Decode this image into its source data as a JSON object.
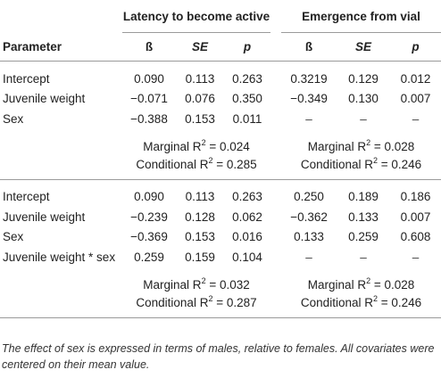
{
  "header": {
    "group1": "Latency to become active",
    "group2": "Emergence from vial",
    "parameter": "Parameter",
    "beta": "ß",
    "se": "SE",
    "p": "p"
  },
  "model1": {
    "rows": [
      {
        "label": "Intercept",
        "b1": "0.090",
        "se1": "0.113",
        "p1": "0.263",
        "b2": "0.3219",
        "se2": "0.129",
        "p2": "0.012"
      },
      {
        "label": "Juvenile weight",
        "b1": "−0.071",
        "se1": "0.076",
        "p1": "0.350",
        "b2": "−0.349",
        "se2": "0.130",
        "p2": "0.007"
      },
      {
        "label": "Sex",
        "b1": "−0.388",
        "se1": "0.153",
        "p1": "0.011",
        "b2": "–",
        "se2": "–",
        "p2": "–"
      }
    ],
    "fit": {
      "marg1": "Marginal R",
      "marg1_val": " = 0.024",
      "cond1": "Conditional R",
      "cond1_val": " = 0.285",
      "marg2": "Marginal R",
      "marg2_val": " = 0.028",
      "cond2": "Conditional R",
      "cond2_val": " = 0.246",
      "sup": "2"
    }
  },
  "model2": {
    "rows": [
      {
        "label": "Intercept",
        "b1": "0.090",
        "se1": "0.113",
        "p1": "0.263",
        "b2": "0.250",
        "se2": "0.189",
        "p2": "0.186"
      },
      {
        "label": "Juvenile weight",
        "b1": "−0.239",
        "se1": "0.128",
        "p1": "0.062",
        "b2": "−0.362",
        "se2": "0.133",
        "p2": "0.007"
      },
      {
        "label": "Sex",
        "b1": "−0.369",
        "se1": "0.153",
        "p1": "0.016",
        "b2": "0.133",
        "se2": "0.259",
        "p2": "0.608"
      },
      {
        "label": "Juvenile weight * sex",
        "b1": "0.259",
        "se1": "0.159",
        "p1": "0.104",
        "b2": "–",
        "se2": "–",
        "p2": "–"
      }
    ],
    "fit": {
      "marg1": "Marginal R",
      "marg1_val": " = 0.032",
      "cond1": "Conditional R",
      "cond1_val": " = 0.287",
      "marg2": "Marginal R",
      "marg2_val": " = 0.028",
      "cond2": "Conditional R",
      "cond2_val": " = 0.246",
      "sup": "2"
    }
  },
  "footnote": "The effect of sex is expressed in terms of males, relative to females. All covariates were centered on their mean value."
}
